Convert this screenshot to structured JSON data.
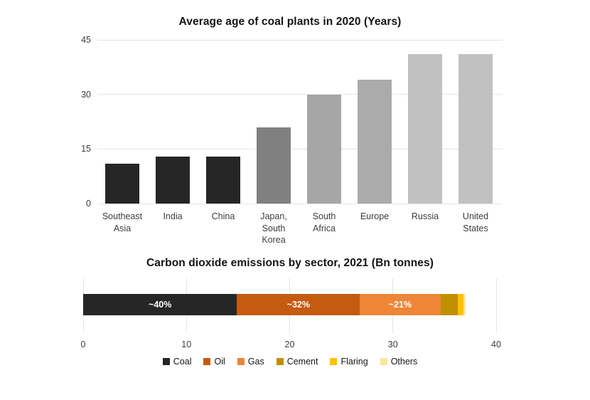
{
  "page": {
    "background": "#ffffff"
  },
  "chart_data": [
    {
      "type": "bar",
      "title": "Average age of coal plants in 2020 (Years)",
      "categories": [
        "Southeast Asia",
        "India",
        "China",
        "Japan, South Korea",
        "South Africa",
        "Europe",
        "Russia",
        "United States"
      ],
      "values": [
        11,
        13,
        13,
        21,
        30,
        34,
        41,
        41
      ],
      "bar_colors": [
        "#262626",
        "#262626",
        "#262626",
        "#808080",
        "#a6a6a6",
        "#ababab",
        "#c1c1c1",
        "#c1c1c1"
      ],
      "xlabel": "",
      "ylabel": "",
      "yticks": [
        0,
        15,
        30,
        45
      ],
      "ylim": [
        0,
        45
      ],
      "grid": true,
      "legend_position": "none"
    },
    {
      "type": "stacked-bar-horizontal",
      "title": "Carbon dioxide emissions by sector, 2021 (Bn tonnes)",
      "xticks": [
        0,
        10,
        20,
        30,
        40
      ],
      "xlim": [
        0,
        40
      ],
      "grid": true,
      "legend_position": "bottom",
      "series": [
        {
          "name": "Coal",
          "value": 14.9,
          "label": "~40%",
          "color": "#262626"
        },
        {
          "name": "Oil",
          "value": 11.9,
          "label": "~32%",
          "color": "#c55a11"
        },
        {
          "name": "Gas",
          "value": 7.8,
          "label": "~21%",
          "color": "#ee8537"
        },
        {
          "name": "Cement",
          "value": 1.7,
          "label": "",
          "color": "#bf9000"
        },
        {
          "name": "Flaring",
          "value": 0.5,
          "label": "",
          "color": "#ffc000"
        },
        {
          "name": "Others",
          "value": 0.25,
          "label": "",
          "color": "#ffe699"
        }
      ]
    }
  ]
}
